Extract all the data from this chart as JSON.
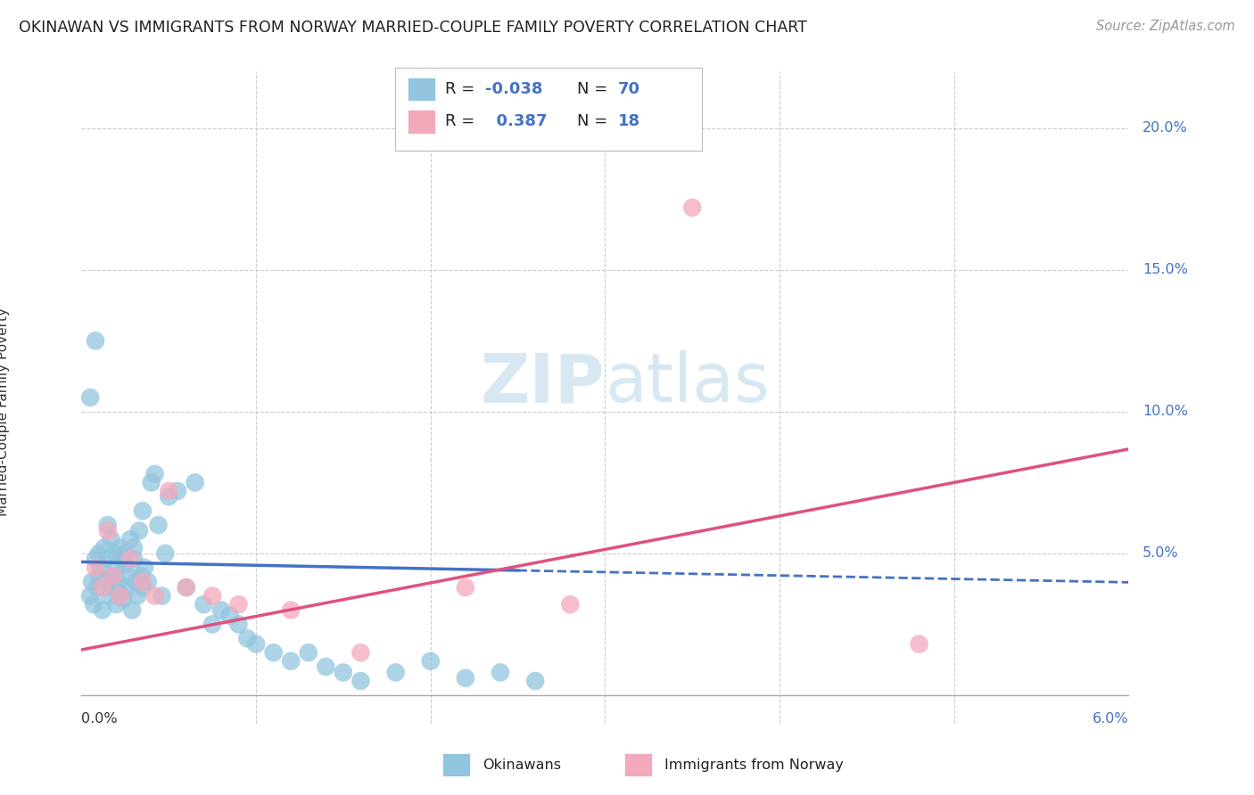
{
  "title": "OKINAWAN VS IMMIGRANTS FROM NORWAY MARRIED-COUPLE FAMILY POVERTY CORRELATION CHART",
  "source": "Source: ZipAtlas.com",
  "ylabel": "Married-Couple Family Poverty",
  "xlim": [
    0.0,
    6.0
  ],
  "ylim": [
    -1.0,
    22.0
  ],
  "color_blue": "#92C5DE",
  "color_pink": "#F4A9BB",
  "color_line_blue": "#4472C4",
  "color_line_pink": "#E05080",
  "color_text_blue": "#4472C4",
  "color_grid": "#CCCCCC",
  "background_color": "#FFFFFF",
  "blue_slope": -0.12,
  "blue_intercept": 4.7,
  "blue_solid_end": 2.5,
  "pink_slope": 1.18,
  "pink_intercept": 1.6,
  "blue_x": [
    0.05,
    0.06,
    0.07,
    0.08,
    0.09,
    0.1,
    0.1,
    0.11,
    0.12,
    0.13,
    0.14,
    0.15,
    0.15,
    0.16,
    0.17,
    0.18,
    0.18,
    0.19,
    0.2,
    0.2,
    0.21,
    0.22,
    0.22,
    0.23,
    0.24,
    0.25,
    0.25,
    0.26,
    0.27,
    0.28,
    0.29,
    0.3,
    0.3,
    0.31,
    0.32,
    0.33,
    0.34,
    0.35,
    0.35,
    0.36,
    0.38,
    0.4,
    0.42,
    0.44,
    0.46,
    0.48,
    0.5,
    0.55,
    0.6,
    0.65,
    0.7,
    0.75,
    0.8,
    0.85,
    0.9,
    0.95,
    1.0,
    1.1,
    1.2,
    1.3,
    1.4,
    1.5,
    1.6,
    1.8,
    2.0,
    2.2,
    2.4,
    2.6,
    0.05,
    0.08
  ],
  "blue_y": [
    3.5,
    4.0,
    3.2,
    4.8,
    3.8,
    5.0,
    4.2,
    4.5,
    3.0,
    5.2,
    4.8,
    4.0,
    6.0,
    3.5,
    5.5,
    4.2,
    3.8,
    5.0,
    4.5,
    3.2,
    4.0,
    5.2,
    3.6,
    4.8,
    3.4,
    5.0,
    4.6,
    3.8,
    4.2,
    5.5,
    3.0,
    4.8,
    5.2,
    4.0,
    3.5,
    5.8,
    4.2,
    3.8,
    6.5,
    4.5,
    4.0,
    7.5,
    7.8,
    6.0,
    3.5,
    5.0,
    7.0,
    7.2,
    3.8,
    7.5,
    3.2,
    2.5,
    3.0,
    2.8,
    2.5,
    2.0,
    1.8,
    1.5,
    1.2,
    1.5,
    1.0,
    0.8,
    0.5,
    0.8,
    1.2,
    0.6,
    0.8,
    0.5,
    10.5,
    12.5
  ],
  "pink_x": [
    0.08,
    0.12,
    0.15,
    0.18,
    0.22,
    0.28,
    0.35,
    0.42,
    0.5,
    0.6,
    0.75,
    0.9,
    1.2,
    1.6,
    2.2,
    2.8,
    3.5,
    4.8
  ],
  "pink_y": [
    4.5,
    3.8,
    5.8,
    4.2,
    3.5,
    4.8,
    4.0,
    3.5,
    7.2,
    3.8,
    3.5,
    3.2,
    3.0,
    1.5,
    3.8,
    3.2,
    17.2,
    1.8
  ]
}
